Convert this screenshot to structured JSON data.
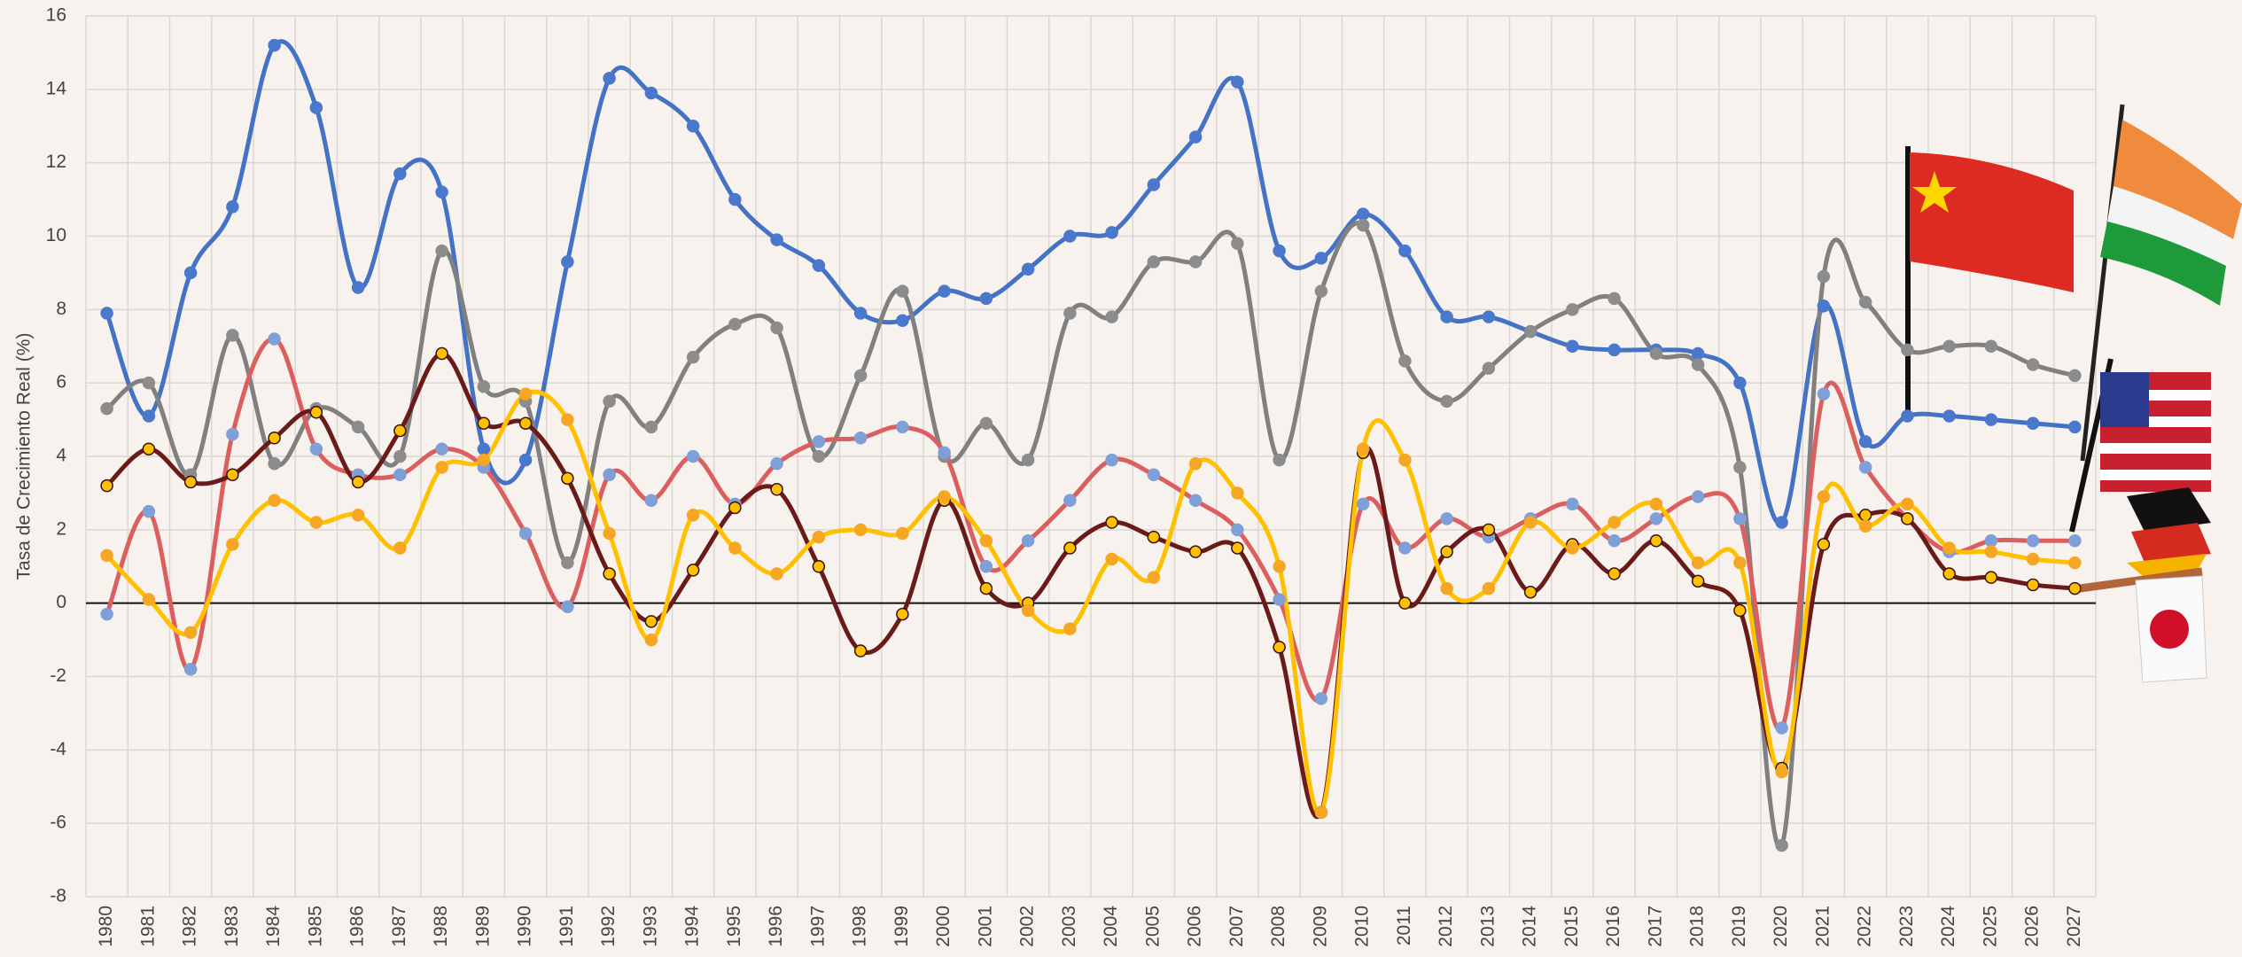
{
  "chart_data": {
    "type": "line",
    "y_label": "Tasa de Crecimiento Real (%)",
    "categories": [
      "1980",
      "1981",
      "1982",
      "1983",
      "1984",
      "1985",
      "1986",
      "1987",
      "1988",
      "1989",
      "1990",
      "1991",
      "1992",
      "1993",
      "1994",
      "1995",
      "1996",
      "1997",
      "1998",
      "1999",
      "2000",
      "2001",
      "2002",
      "2003",
      "2004",
      "2005",
      "2006",
      "2007",
      "2008",
      "2009",
      "2010",
      "2011",
      "2012",
      "2013",
      "2014",
      "2015",
      "2016",
      "2017",
      "2018",
      "2019",
      "2020",
      "2021",
      "2022",
      "2023",
      "2024",
      "2025",
      "2026",
      "2027"
    ],
    "ylim": [
      -8,
      16
    ],
    "yticks": [
      -8,
      -6,
      -4,
      -2,
      0,
      2,
      4,
      6,
      8,
      10,
      12,
      14,
      16
    ],
    "grid": true,
    "smooth": true,
    "series": [
      {
        "color": "#4472c4",
        "marker_color": "#4a78cc",
        "values": [
          7.9,
          5.1,
          9.0,
          10.8,
          15.2,
          13.5,
          8.6,
          11.7,
          11.2,
          4.2,
          3.9,
          9.3,
          14.3,
          13.9,
          13.0,
          11.0,
          9.9,
          9.2,
          7.9,
          7.7,
          8.5,
          8.3,
          9.1,
          10.0,
          10.1,
          11.4,
          12.7,
          14.2,
          9.6,
          9.4,
          10.6,
          9.6,
          7.8,
          7.8,
          7.4,
          7.0,
          6.9,
          6.9,
          6.8,
          6.0,
          2.2,
          8.1,
          4.4,
          5.1,
          5.1,
          5.0,
          4.9,
          4.8
        ]
      },
      {
        "color": "#808080",
        "marker_color": "#8c8c8c",
        "values": [
          5.3,
          6.0,
          3.5,
          7.3,
          3.8,
          5.3,
          4.8,
          4.0,
          9.6,
          5.9,
          5.5,
          1.1,
          5.5,
          4.8,
          6.7,
          7.6,
          7.5,
          4.0,
          6.2,
          8.5,
          4.0,
          4.9,
          3.9,
          7.9,
          7.8,
          9.3,
          9.3,
          9.8,
          3.9,
          8.5,
          10.3,
          6.6,
          5.5,
          6.4,
          7.4,
          8.0,
          8.3,
          6.8,
          6.5,
          3.7,
          -6.6,
          8.9,
          8.2,
          6.9,
          7.0,
          7.0,
          6.5,
          6.2
        ]
      },
      {
        "color": "#db5f5f",
        "marker_color": "#7f9fd8",
        "values": [
          -0.3,
          2.5,
          -1.8,
          4.6,
          7.2,
          4.2,
          3.5,
          3.5,
          4.2,
          3.7,
          1.9,
          -0.1,
          3.5,
          2.8,
          4.0,
          2.7,
          3.8,
          4.4,
          4.5,
          4.8,
          4.1,
          1.0,
          1.7,
          2.8,
          3.9,
          3.5,
          2.8,
          2.0,
          0.1,
          -2.6,
          2.7,
          1.5,
          2.3,
          1.8,
          2.3,
          2.7,
          1.7,
          2.3,
          2.9,
          2.3,
          -3.4,
          5.7,
          3.7,
          2.3,
          1.4,
          1.7,
          1.7,
          1.7
        ]
      },
      {
        "color": "#6b1a1a",
        "marker_color": "#ffc000",
        "values": [
          3.2,
          4.2,
          3.3,
          3.5,
          4.5,
          5.2,
          3.3,
          4.7,
          6.8,
          4.9,
          4.9,
          3.4,
          0.8,
          -0.5,
          0.9,
          2.6,
          3.1,
          1.0,
          -1.3,
          -0.3,
          2.8,
          0.4,
          0.0,
          1.5,
          2.2,
          1.8,
          1.4,
          1.5,
          -1.2,
          -5.7,
          4.1,
          0.0,
          1.4,
          2.0,
          0.3,
          1.6,
          0.8,
          1.7,
          0.6,
          -0.2,
          -4.5,
          1.6,
          2.4,
          2.3,
          0.8,
          0.7,
          0.5,
          0.4
        ]
      },
      {
        "color": "#ffc000",
        "marker_color": "#f5a623",
        "values": [
          1.3,
          0.1,
          -0.8,
          1.6,
          2.8,
          2.2,
          2.4,
          1.5,
          3.7,
          3.9,
          5.7,
          5.0,
          1.9,
          -1.0,
          2.4,
          1.5,
          0.8,
          1.8,
          2.0,
          1.9,
          2.9,
          1.7,
          -0.2,
          -0.7,
          1.2,
          0.7,
          3.8,
          3.0,
          1.0,
          -5.7,
          4.2,
          3.9,
          0.4,
          0.4,
          2.2,
          1.5,
          2.2,
          2.7,
          1.1,
          1.1,
          -4.6,
          2.9,
          2.1,
          2.7,
          1.5,
          1.4,
          1.2,
          1.1
        ]
      }
    ]
  }
}
